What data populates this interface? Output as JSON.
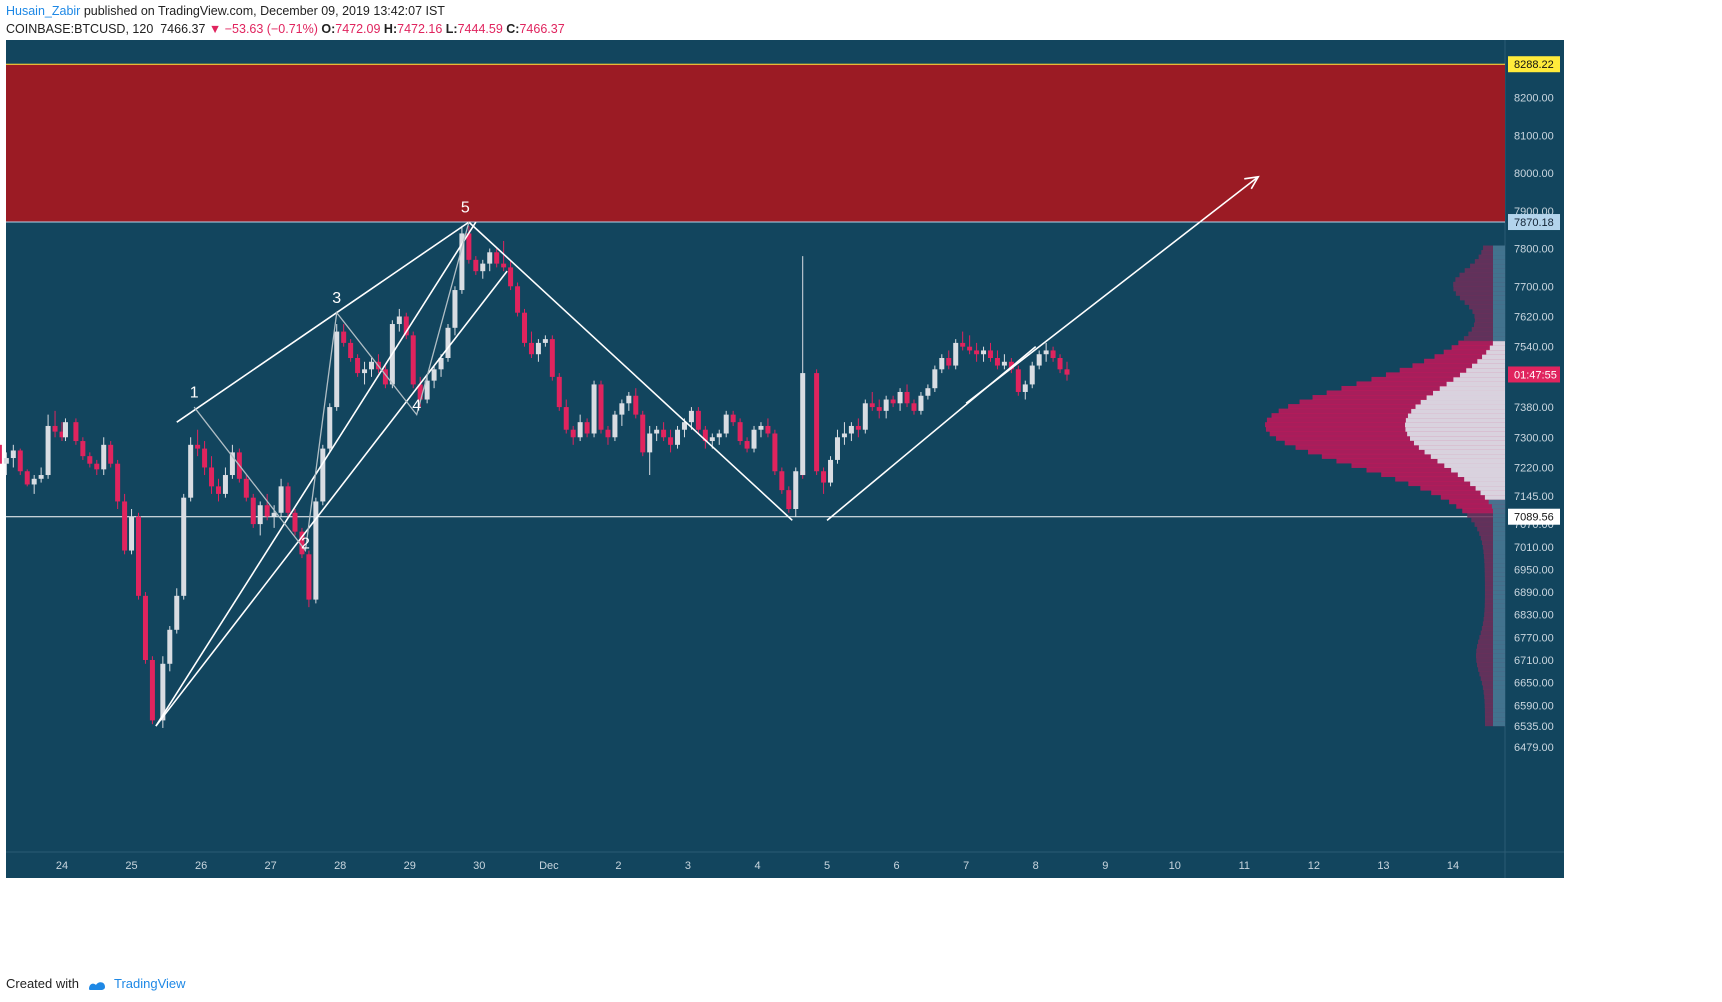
{
  "header": {
    "author": "Husain_Zabir",
    "published_text": "published on TradingView.com, December 09, 2019 13:42:07 IST",
    "symbol": "COINBASE:BTCUSD, 120",
    "last_price": "7466.37",
    "change": "−53.63 (−0.71%)",
    "open_label": "O:",
    "open": "7472.09",
    "high_label": "H:",
    "high": "7472.16",
    "low_label": "L:",
    "low": "7444.59",
    "close_label": "C:",
    "close": "7466.37"
  },
  "footer": {
    "created_with": "Created with",
    "brand": "TradingView"
  },
  "colors": {
    "background": "#12455e",
    "resistance_zone": "#9b1b24",
    "bull_candle": "#d9dde3",
    "bear_candle": "#e0245e",
    "line": "#ffffff",
    "price_tag_yellow": "#ffeb3b",
    "price_tag_blue": "#b3d4ec",
    "countdown_tag": "#e0245e"
  },
  "chart_data": {
    "type": "candlestick",
    "symbol": "COINBASE:BTCUSD",
    "interval": "120",
    "ylim": [
      6450,
      8370
    ],
    "y_ticks": [
      8200,
      8100,
      8000,
      7900,
      7800,
      7700,
      7620,
      7540,
      7460,
      7380,
      7300,
      7220,
      7145,
      7070,
      7010,
      6950,
      6890,
      6830,
      6770,
      6710,
      6650,
      6590,
      6535,
      6479
    ],
    "x_ticks": [
      "24",
      "25",
      "26",
      "27",
      "28",
      "29",
      "30",
      "Dec",
      "2",
      "3",
      "4",
      "5",
      "6",
      "7",
      "8",
      "9",
      "10",
      "11",
      "12",
      "13",
      "14"
    ],
    "price_tags": [
      {
        "label": "8288.22",
        "value": 8288.22,
        "style": "yellow"
      },
      {
        "label": "7870.18",
        "value": 7870.18,
        "style": "blue"
      },
      {
        "label": "01:47:55",
        "value": 7466.37,
        "style": "countdown"
      },
      {
        "label": "7089.56",
        "value": 7089.56,
        "style": "white"
      }
    ],
    "resistance_zone": {
      "from": 7870.18,
      "to": 8288.22
    },
    "horizontal_lines": [
      8288.22,
      7870.18,
      7089.56
    ],
    "wave_labels": [
      {
        "label": "1",
        "day": 25.9,
        "price": 7390
      },
      {
        "label": "2",
        "day": 27.5,
        "price": 6990
      },
      {
        "label": "3",
        "day": 27.95,
        "price": 7640
      },
      {
        "label": "4",
        "day": 29.1,
        "price": 7355
      },
      {
        "label": "5",
        "day": 29.8,
        "price": 7880
      }
    ],
    "candles": [
      [
        23.1,
        7280,
        7300,
        7230,
        7230
      ],
      [
        23.2,
        7230,
        7260,
        7200,
        7245
      ],
      [
        23.3,
        7245,
        7280,
        7220,
        7265
      ],
      [
        23.4,
        7265,
        7270,
        7200,
        7210
      ],
      [
        23.5,
        7210,
        7215,
        7170,
        7175
      ],
      [
        23.6,
        7175,
        7200,
        7150,
        7190
      ],
      [
        23.7,
        7190,
        7220,
        7180,
        7200
      ],
      [
        23.8,
        7200,
        7360,
        7190,
        7330
      ],
      [
        23.9,
        7330,
        7370,
        7300,
        7315
      ],
      [
        24,
        7315,
        7340,
        7290,
        7300
      ],
      [
        24.05,
        7300,
        7350,
        7290,
        7340
      ],
      [
        24.2,
        7340,
        7350,
        7280,
        7290
      ],
      [
        24.3,
        7290,
        7300,
        7240,
        7250
      ],
      [
        24.4,
        7250,
        7260,
        7220,
        7230
      ],
      [
        24.5,
        7230,
        7240,
        7200,
        7215
      ],
      [
        24.6,
        7215,
        7300,
        7200,
        7280
      ],
      [
        24.7,
        7280,
        7290,
        7220,
        7230
      ],
      [
        24.8,
        7230,
        7240,
        7110,
        7130
      ],
      [
        24.9,
        7130,
        7150,
        6990,
        7000
      ],
      [
        25,
        7000,
        7110,
        6990,
        7090
      ],
      [
        25.1,
        7090,
        7100,
        6870,
        6880
      ],
      [
        25.2,
        6880,
        6890,
        6700,
        6710
      ],
      [
        25.3,
        6710,
        6720,
        6540,
        6550
      ],
      [
        25.45,
        6550,
        6720,
        6530,
        6700
      ],
      [
        25.55,
        6700,
        6800,
        6680,
        6790
      ],
      [
        25.65,
        6790,
        6900,
        6780,
        6880
      ],
      [
        25.75,
        6880,
        7150,
        6870,
        7140
      ],
      [
        25.85,
        7140,
        7300,
        7130,
        7280
      ],
      [
        25.95,
        7280,
        7320,
        7250,
        7270
      ],
      [
        26.05,
        7270,
        7290,
        7200,
        7220
      ],
      [
        26.15,
        7220,
        7250,
        7150,
        7170
      ],
      [
        26.25,
        7170,
        7190,
        7130,
        7150
      ],
      [
        26.35,
        7150,
        7220,
        7140,
        7200
      ],
      [
        26.45,
        7200,
        7280,
        7190,
        7260
      ],
      [
        26.55,
        7260,
        7270,
        7180,
        7190
      ],
      [
        26.65,
        7190,
        7200,
        7130,
        7140
      ],
      [
        26.75,
        7140,
        7150,
        7060,
        7070
      ],
      [
        26.85,
        7070,
        7130,
        7040,
        7120
      ],
      [
        26.95,
        7120,
        7150,
        7080,
        7090
      ],
      [
        27.05,
        7090,
        7120,
        7060,
        7100
      ],
      [
        27.15,
        7100,
        7190,
        7090,
        7170
      ],
      [
        27.25,
        7170,
        7180,
        7090,
        7100
      ],
      [
        27.35,
        7100,
        7110,
        7040,
        7050
      ],
      [
        27.45,
        7050,
        7060,
        6980,
        6990
      ],
      [
        27.55,
        6990,
        7000,
        6850,
        6870
      ],
      [
        27.65,
        6870,
        7140,
        6860,
        7130
      ],
      [
        27.75,
        7130,
        7280,
        7120,
        7270
      ],
      [
        27.85,
        7270,
        7390,
        7260,
        7380
      ],
      [
        27.95,
        7380,
        7600,
        7370,
        7580
      ],
      [
        28.05,
        7580,
        7600,
        7540,
        7550
      ],
      [
        28.15,
        7550,
        7560,
        7500,
        7510
      ],
      [
        28.25,
        7510,
        7520,
        7460,
        7470
      ],
      [
        28.35,
        7470,
        7500,
        7440,
        7480
      ],
      [
        28.45,
        7480,
        7510,
        7460,
        7500
      ],
      [
        28.55,
        7500,
        7520,
        7470,
        7480
      ],
      [
        28.65,
        7480,
        7490,
        7430,
        7440
      ],
      [
        28.75,
        7440,
        7610,
        7430,
        7600
      ],
      [
        28.85,
        7600,
        7640,
        7580,
        7620
      ],
      [
        28.95,
        7620,
        7630,
        7560,
        7570
      ],
      [
        29.05,
        7570,
        7580,
        7430,
        7440
      ],
      [
        29.15,
        7440,
        7460,
        7380,
        7400
      ],
      [
        29.25,
        7400,
        7460,
        7390,
        7450
      ],
      [
        29.35,
        7450,
        7490,
        7430,
        7480
      ],
      [
        29.45,
        7480,
        7520,
        7460,
        7510
      ],
      [
        29.55,
        7510,
        7600,
        7500,
        7590
      ],
      [
        29.65,
        7590,
        7700,
        7570,
        7690
      ],
      [
        29.75,
        7690,
        7860,
        7680,
        7840
      ],
      [
        29.85,
        7840,
        7860,
        7760,
        7770
      ],
      [
        29.95,
        7770,
        7780,
        7730,
        7740
      ],
      [
        30.05,
        7740,
        7770,
        7720,
        7760
      ],
      [
        30.15,
        7760,
        7800,
        7740,
        7790
      ],
      [
        30.25,
        7790,
        7800,
        7750,
        7760
      ],
      [
        30.35,
        7760,
        7820,
        7740,
        7750
      ],
      [
        30.45,
        7750,
        7770,
        7690,
        7700
      ],
      [
        30.55,
        7700,
        7710,
        7620,
        7630
      ],
      [
        30.65,
        7630,
        7640,
        7540,
        7550
      ],
      [
        30.75,
        7550,
        7580,
        7510,
        7520
      ],
      [
        30.85,
        7520,
        7560,
        7500,
        7550
      ],
      [
        30.95,
        7550,
        7570,
        7540,
        7560
      ],
      [
        31.05,
        7560,
        7570,
        7450,
        7460
      ],
      [
        31.15,
        7460,
        7470,
        7370,
        7380
      ],
      [
        31.25,
        7380,
        7400,
        7310,
        7320
      ],
      [
        31.35,
        7320,
        7330,
        7280,
        7300
      ],
      [
        31.45,
        7300,
        7360,
        7290,
        7340
      ],
      [
        31.55,
        7340,
        7350,
        7300,
        7310
      ],
      [
        31.65,
        7310,
        7450,
        7300,
        7440
      ],
      [
        31.75,
        7440,
        7450,
        7310,
        7320
      ],
      [
        31.85,
        7320,
        7330,
        7280,
        7300
      ],
      [
        31.95,
        7300,
        7370,
        7290,
        7360
      ],
      [
        32.05,
        7360,
        7400,
        7330,
        7390
      ],
      [
        32.15,
        7390,
        7420,
        7370,
        7410
      ],
      [
        32.25,
        7410,
        7430,
        7350,
        7360
      ],
      [
        32.35,
        7360,
        7370,
        7250,
        7260
      ],
      [
        32.45,
        7260,
        7330,
        7200,
        7310
      ],
      [
        32.55,
        7310,
        7330,
        7290,
        7320
      ],
      [
        32.65,
        7320,
        7340,
        7290,
        7300
      ],
      [
        32.75,
        7300,
        7320,
        7260,
        7280
      ],
      [
        32.85,
        7280,
        7330,
        7270,
        7320
      ],
      [
        32.95,
        7320,
        7350,
        7300,
        7340
      ],
      [
        33.05,
        7340,
        7380,
        7320,
        7370
      ],
      [
        33.15,
        7370,
        7380,
        7310,
        7320
      ],
      [
        33.25,
        7320,
        7330,
        7270,
        7290
      ],
      [
        33.35,
        7290,
        7310,
        7270,
        7300
      ],
      [
        33.45,
        7300,
        7320,
        7280,
        7310
      ],
      [
        33.55,
        7310,
        7370,
        7300,
        7360
      ],
      [
        33.65,
        7360,
        7370,
        7330,
        7340
      ],
      [
        33.75,
        7340,
        7350,
        7280,
        7290
      ],
      [
        33.85,
        7290,
        7300,
        7260,
        7270
      ],
      [
        33.95,
        7270,
        7330,
        7260,
        7320
      ],
      [
        34.05,
        7320,
        7340,
        7300,
        7330
      ],
      [
        34.15,
        7330,
        7350,
        7300,
        7310
      ],
      [
        34.25,
        7310,
        7320,
        7200,
        7210
      ],
      [
        34.35,
        7210,
        7220,
        7150,
        7160
      ],
      [
        34.45,
        7160,
        7170,
        7100,
        7110
      ],
      [
        34.55,
        7110,
        7220,
        7090,
        7210
      ],
      [
        34.65,
        7210,
        7220,
        7190,
        7200
      ],
      [
        34.65,
        7200,
        7780,
        7200,
        7470
      ],
      [
        34.85,
        7470,
        7480,
        7200,
        7210
      ],
      [
        34.95,
        7210,
        7220,
        7150,
        7180
      ],
      [
        35.05,
        7180,
        7250,
        7170,
        7240
      ],
      [
        35.15,
        7240,
        7320,
        7230,
        7300
      ],
      [
        35.25,
        7300,
        7340,
        7280,
        7310
      ],
      [
        35.35,
        7310,
        7340,
        7290,
        7330
      ],
      [
        35.45,
        7330,
        7350,
        7300,
        7320
      ],
      [
        35.55,
        7320,
        7400,
        7310,
        7390
      ],
      [
        35.65,
        7390,
        7420,
        7370,
        7380
      ],
      [
        35.75,
        7380,
        7400,
        7350,
        7370
      ],
      [
        35.85,
        7370,
        7410,
        7350,
        7400
      ],
      [
        35.95,
        7400,
        7410,
        7380,
        7390
      ],
      [
        36.05,
        7390,
        7430,
        7370,
        7420
      ],
      [
        36.15,
        7420,
        7440,
        7380,
        7390
      ],
      [
        36.25,
        7390,
        7400,
        7360,
        7370
      ],
      [
        36.35,
        7370,
        7420,
        7360,
        7410
      ],
      [
        36.45,
        7410,
        7440,
        7400,
        7430
      ],
      [
        36.55,
        7430,
        7490,
        7420,
        7480
      ],
      [
        36.65,
        7480,
        7520,
        7470,
        7510
      ],
      [
        36.75,
        7510,
        7530,
        7480,
        7490
      ],
      [
        36.85,
        7490,
        7560,
        7480,
        7550
      ],
      [
        36.95,
        7550,
        7580,
        7530,
        7540
      ],
      [
        37.05,
        7540,
        7570,
        7520,
        7530
      ],
      [
        37.15,
        7530,
        7550,
        7500,
        7520
      ],
      [
        37.25,
        7520,
        7540,
        7500,
        7530
      ],
      [
        37.35,
        7530,
        7550,
        7500,
        7510
      ],
      [
        37.45,
        7510,
        7530,
        7480,
        7490
      ],
      [
        37.55,
        7490,
        7520,
        7480,
        7500
      ],
      [
        37.65,
        7500,
        7510,
        7470,
        7480
      ],
      [
        37.75,
        7480,
        7490,
        7410,
        7420
      ],
      [
        37.85,
        7420,
        7450,
        7400,
        7440
      ],
      [
        37.95,
        7440,
        7500,
        7430,
        7490
      ],
      [
        38.05,
        7490,
        7530,
        7480,
        7520
      ],
      [
        38.15,
        7520,
        7550,
        7500,
        7530
      ],
      [
        38.25,
        7530,
        7540,
        7500,
        7510
      ],
      [
        38.35,
        7510,
        7520,
        7470,
        7480
      ],
      [
        38.45,
        7480,
        7500,
        7450,
        7466
      ]
    ]
  }
}
